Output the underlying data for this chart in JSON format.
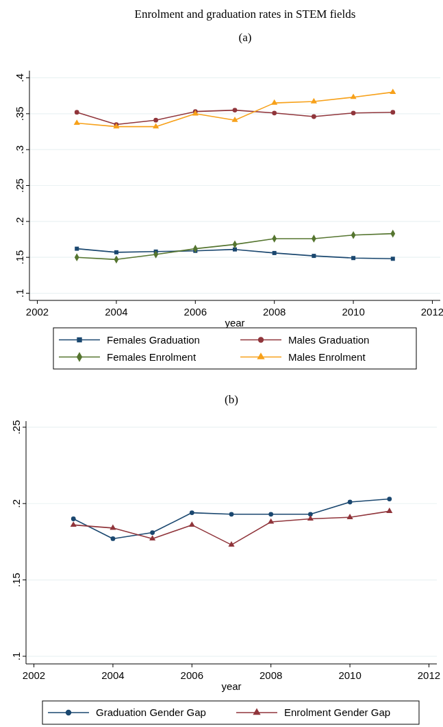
{
  "chart_data": [
    {
      "type": "line",
      "title": "Enrolment and graduation rates in STEM fields",
      "subtitle": "(a)",
      "xlabel": "year",
      "x": [
        2003,
        2004,
        2005,
        2006,
        2007,
        2008,
        2009,
        2010,
        2011
      ],
      "xlim": [
        2001.8,
        2012.2
      ],
      "xticks": [
        2002,
        2004,
        2006,
        2008,
        2010,
        2012
      ],
      "ylim": [
        0.09,
        0.41
      ],
      "yticks": [
        {
          "value": 0.1,
          "label": ".1"
        },
        {
          "value": 0.15,
          "label": ".15"
        },
        {
          "value": 0.2,
          "label": ".2"
        },
        {
          "value": 0.25,
          "label": ".25"
        },
        {
          "value": 0.3,
          "label": ".3"
        },
        {
          "value": 0.35,
          "label": ".35"
        },
        {
          "value": 0.4,
          "label": ".4"
        }
      ],
      "grid": "y",
      "legend": "bottom",
      "series": [
        {
          "name": "Females Graduation",
          "color": "#1a476f",
          "marker": "square",
          "values": [
            0.162,
            0.157,
            0.158,
            0.159,
            0.161,
            0.156,
            0.152,
            0.149,
            0.148
          ]
        },
        {
          "name": "Males Graduation",
          "color": "#90353b",
          "marker": "circle",
          "values": [
            0.352,
            0.335,
            0.341,
            0.353,
            0.355,
            0.351,
            0.346,
            0.351,
            0.352
          ]
        },
        {
          "name": "Females Enrolment",
          "color": "#55752f",
          "marker": "diamond",
          "values": [
            0.15,
            0.147,
            0.154,
            0.162,
            0.168,
            0.176,
            0.176,
            0.181,
            0.183
          ]
        },
        {
          "name": "Males Enrolment",
          "color": "#f7a11a",
          "marker": "triangle",
          "values": [
            0.337,
            0.332,
            0.332,
            0.35,
            0.341,
            0.365,
            0.367,
            0.373,
            0.38
          ]
        }
      ]
    },
    {
      "type": "line",
      "title": "(b)",
      "xlabel": "year",
      "x": [
        2003,
        2004,
        2005,
        2006,
        2007,
        2008,
        2009,
        2010,
        2011
      ],
      "xlim": [
        2001.8,
        2012.2
      ],
      "xticks": [
        2002,
        2004,
        2006,
        2008,
        2010,
        2012
      ],
      "ylim": [
        0.095,
        0.254
      ],
      "yticks": [
        {
          "value": 0.1,
          "label": ".1"
        },
        {
          "value": 0.15,
          "label": ".15"
        },
        {
          "value": 0.2,
          "label": ".2"
        },
        {
          "value": 0.25,
          "label": ".25"
        }
      ],
      "grid": "y",
      "legend": "bottom",
      "series": [
        {
          "name": "Graduation Gender Gap",
          "color": "#1a476f",
          "marker": "circle",
          "values": [
            0.19,
            0.177,
            0.181,
            0.194,
            0.193,
            0.193,
            0.193,
            0.201,
            0.203
          ]
        },
        {
          "name": "Enrolment Gender Gap",
          "color": "#90353b",
          "marker": "triangle",
          "values": [
            0.186,
            0.184,
            0.177,
            0.186,
            0.173,
            0.188,
            0.19,
            0.191,
            0.195
          ]
        }
      ]
    }
  ]
}
